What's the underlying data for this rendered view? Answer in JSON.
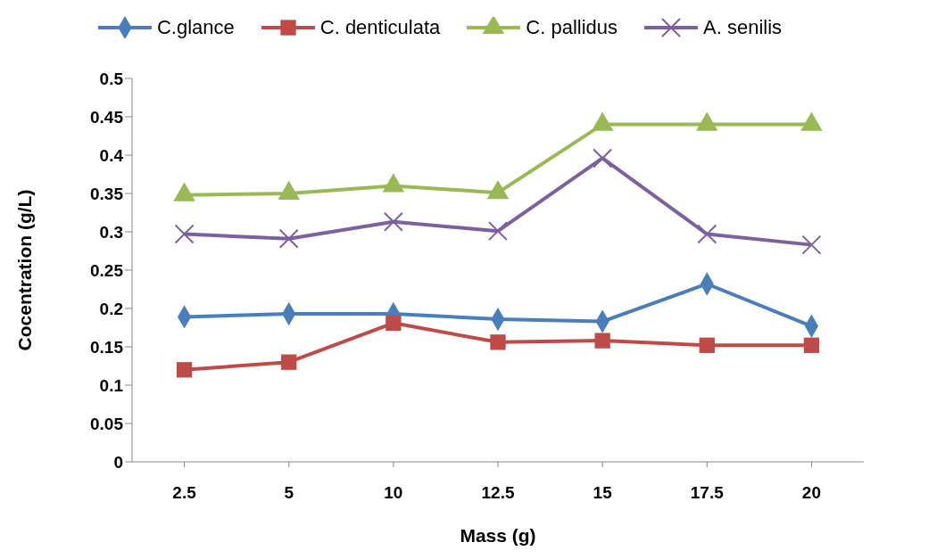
{
  "chart_data": {
    "type": "line",
    "xlabel": "Mass (g)",
    "ylabel": "Cocentration (g/L)",
    "categories": [
      "2.5",
      "5",
      "10",
      "12.5",
      "15",
      "17.5",
      "20"
    ],
    "series": [
      {
        "name": "C.glance",
        "color": "#4a7ebb",
        "marker": "diamond",
        "values": [
          0.189,
          0.193,
          0.193,
          0.186,
          0.183,
          0.232,
          0.177
        ]
      },
      {
        "name": "C. denticulata",
        "color": "#be4b48",
        "marker": "square",
        "values": [
          0.12,
          0.13,
          0.181,
          0.156,
          0.158,
          0.152,
          0.152
        ]
      },
      {
        "name": "C. pallidus",
        "color": "#98b954",
        "marker": "triangle",
        "values": [
          0.348,
          0.35,
          0.36,
          0.351,
          0.44,
          0.44,
          0.44
        ]
      },
      {
        "name": "A. senilis",
        "color": "#7d60a0",
        "marker": "cross",
        "values": [
          0.297,
          0.291,
          0.313,
          0.301,
          0.396,
          0.297,
          0.283
        ]
      }
    ],
    "ylim": [
      0,
      0.5
    ],
    "yticks": [
      0,
      0.05,
      0.1,
      0.15,
      0.2,
      0.25,
      0.3,
      0.35,
      0.4,
      0.45,
      0.5
    ],
    "grid": false,
    "legend": "top",
    "line_style": "solid"
  }
}
